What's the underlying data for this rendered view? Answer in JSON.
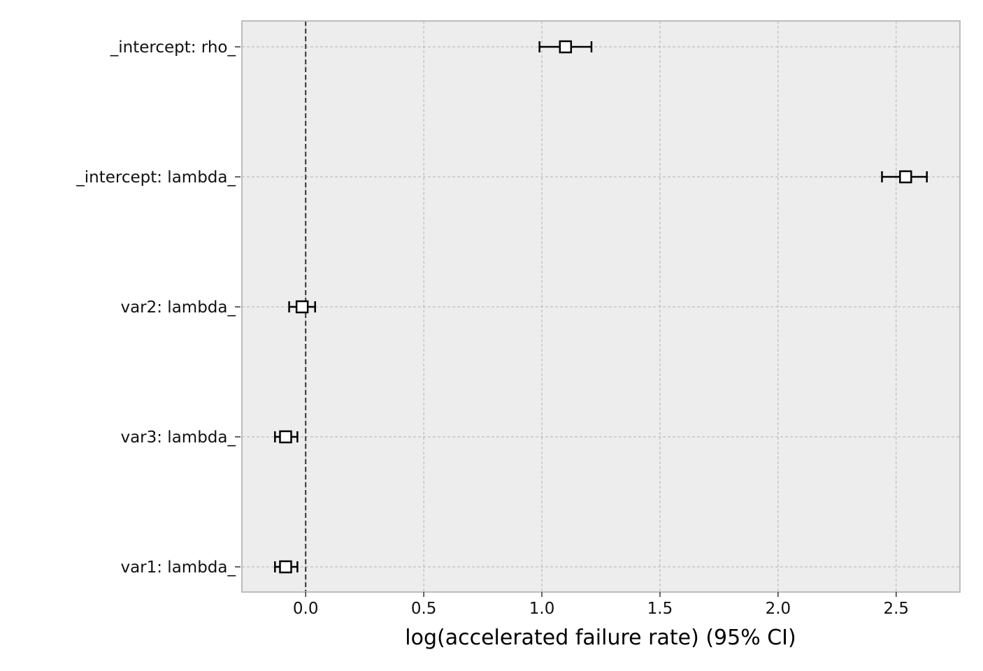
{
  "chart_data": {
    "type": "forest",
    "xlabel": "log(accelerated failure rate) (95% CI)",
    "xlim": [
      -0.27,
      2.77
    ],
    "xticks": [
      0.0,
      0.5,
      1.0,
      1.5,
      2.0,
      2.5
    ],
    "xtick_labels": [
      "0.0",
      "0.5",
      "1.0",
      "1.5",
      "2.0",
      "2.5"
    ],
    "reference_line": 0.0,
    "grid": true,
    "categories": [
      "_intercept: rho_",
      "_intercept: lambda_",
      "var2: lambda_",
      "var3: lambda_",
      "var1: lambda_"
    ],
    "points": [
      {
        "label": "_intercept: rho_",
        "value": 1.1,
        "lower": 0.99,
        "upper": 1.21
      },
      {
        "label": "_intercept: lambda_",
        "value": 2.54,
        "lower": 2.44,
        "upper": 2.63
      },
      {
        "label": "var2: lambda_",
        "value": -0.015,
        "lower": -0.07,
        "upper": 0.04
      },
      {
        "label": "var3: lambda_",
        "value": -0.085,
        "lower": -0.13,
        "upper": -0.035
      },
      {
        "label": "var1: lambda_",
        "value": -0.085,
        "lower": -0.13,
        "upper": -0.035
      }
    ],
    "colors": {
      "plot_background": "#ededed",
      "frame": "#bcbcbc",
      "grid": "#b2b2b2",
      "marker": "#000000"
    }
  }
}
